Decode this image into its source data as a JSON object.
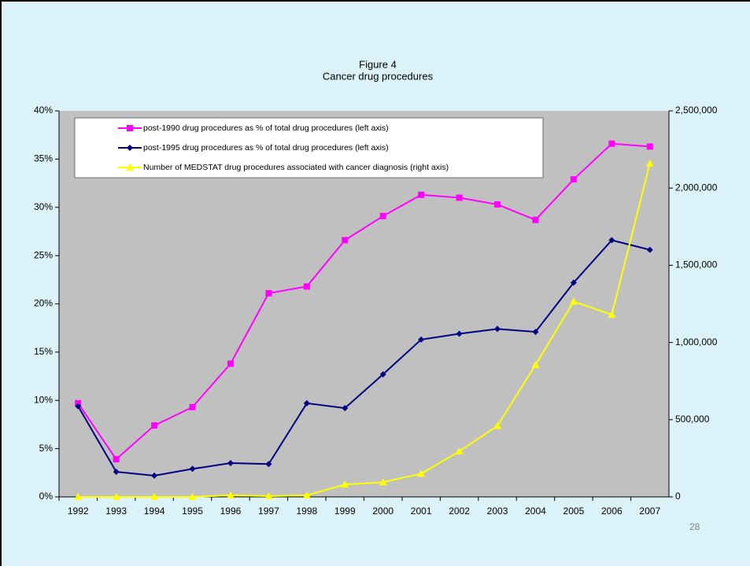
{
  "chart_data": {
    "type": "line",
    "title": "Figure 4",
    "subtitle": "Cancer drug procedures",
    "categories": [
      "1992",
      "1993",
      "1994",
      "1995",
      "1996",
      "1997",
      "1998",
      "1999",
      "2000",
      "2001",
      "2002",
      "2003",
      "2004",
      "2005",
      "2006",
      "2007"
    ],
    "series": [
      {
        "name": "post-1990 drug procedures as % of total drug procedures (left axis)",
        "color": "#ff00ff",
        "marker": "square",
        "values": [
          9.7,
          3.9,
          7.4,
          9.3,
          13.8,
          21.1,
          21.8,
          26.6,
          29.1,
          31.3,
          31.0,
          30.3,
          28.7,
          32.9,
          36.6,
          36.3
        ]
      },
      {
        "name": "post-1995 drug procedures as % of total drug procedures (left axis)",
        "color": "#000080",
        "marker": "diamond",
        "values": [
          9.4,
          2.6,
          2.2,
          2.9,
          3.5,
          3.4,
          9.7,
          9.2,
          12.7,
          16.3,
          16.9,
          17.4,
          17.1,
          22.2,
          26.6,
          25.6
        ]
      },
      {
        "name": "Number of MEDSTAT drug procedures associated with cancer diagnosis (right axis)",
        "color": "#ffff00",
        "marker": "triangle",
        "axis": "y2",
        "values": [
          0,
          0,
          0,
          0,
          10000,
          5000,
          10000,
          80000,
          95000,
          150000,
          295000,
          460000,
          855000,
          1265000,
          1180000,
          2160000
        ]
      }
    ],
    "ylim": [
      0,
      40
    ],
    "yticks": [
      {
        "value": 0,
        "label": "0%"
      },
      {
        "value": 5,
        "label": "5%"
      },
      {
        "value": 10,
        "label": "10%"
      },
      {
        "value": 15,
        "label": "15%"
      },
      {
        "value": 20,
        "label": "20%"
      },
      {
        "value": 25,
        "label": "25%"
      },
      {
        "value": 30,
        "label": "30%"
      },
      {
        "value": 35,
        "label": "35%"
      },
      {
        "value": 40,
        "label": "40%"
      }
    ],
    "y2lim": [
      0,
      2500000
    ],
    "y2ticks": [
      0,
      {
        "value": 500000,
        "label": "500,000"
      },
      {
        "value": 1000000,
        "label": "1,000,000"
      },
      {
        "value": 1500000,
        "label": "1,500,000"
      },
      {
        "value": 2000000,
        "label": "2,000,000"
      },
      {
        "value": 2500000,
        "label": "2,500,000"
      }
    ],
    "grid": false,
    "legend": "upper left"
  },
  "slide": {
    "page_number": "28"
  }
}
